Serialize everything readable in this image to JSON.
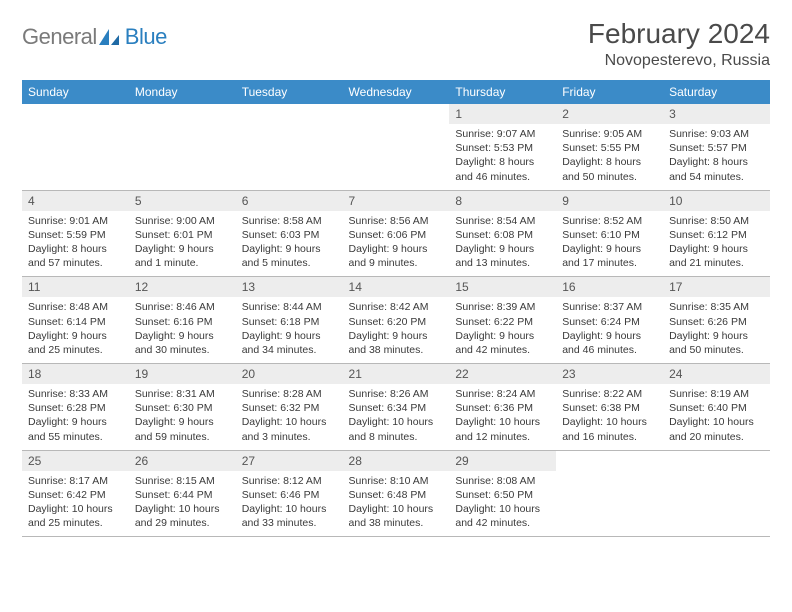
{
  "brand": {
    "word1": "General",
    "word2": "Blue"
  },
  "title": {
    "month": "February 2024",
    "location": "Novopesterevo, Russia"
  },
  "colors": {
    "header_bg": "#3b8bc8",
    "header_text": "#ffffff",
    "daynum_bg": "#ededed",
    "text": "#3a3a3a",
    "divider": "#b8b8b8",
    "logo_gray": "#7a7a7a",
    "logo_blue": "#2a7fbf",
    "page_bg": "#ffffff"
  },
  "typography": {
    "month_title_fontsize": 28,
    "location_fontsize": 16,
    "dayhead_fontsize": 12,
    "daynum_fontsize": 12,
    "body_fontsize": 10.5
  },
  "calendar": {
    "type": "table",
    "columns": [
      "Sunday",
      "Monday",
      "Tuesday",
      "Wednesday",
      "Thursday",
      "Friday",
      "Saturday"
    ],
    "weeks": [
      [
        {
          "blank": true
        },
        {
          "blank": true
        },
        {
          "blank": true
        },
        {
          "blank": true
        },
        {
          "day": "1",
          "sunrise": "Sunrise: 9:07 AM",
          "sunset": "Sunset: 5:53 PM",
          "daylight1": "Daylight: 8 hours",
          "daylight2": "and 46 minutes."
        },
        {
          "day": "2",
          "sunrise": "Sunrise: 9:05 AM",
          "sunset": "Sunset: 5:55 PM",
          "daylight1": "Daylight: 8 hours",
          "daylight2": "and 50 minutes."
        },
        {
          "day": "3",
          "sunrise": "Sunrise: 9:03 AM",
          "sunset": "Sunset: 5:57 PM",
          "daylight1": "Daylight: 8 hours",
          "daylight2": "and 54 minutes."
        }
      ],
      [
        {
          "day": "4",
          "sunrise": "Sunrise: 9:01 AM",
          "sunset": "Sunset: 5:59 PM",
          "daylight1": "Daylight: 8 hours",
          "daylight2": "and 57 minutes."
        },
        {
          "day": "5",
          "sunrise": "Sunrise: 9:00 AM",
          "sunset": "Sunset: 6:01 PM",
          "daylight1": "Daylight: 9 hours",
          "daylight2": "and 1 minute."
        },
        {
          "day": "6",
          "sunrise": "Sunrise: 8:58 AM",
          "sunset": "Sunset: 6:03 PM",
          "daylight1": "Daylight: 9 hours",
          "daylight2": "and 5 minutes."
        },
        {
          "day": "7",
          "sunrise": "Sunrise: 8:56 AM",
          "sunset": "Sunset: 6:06 PM",
          "daylight1": "Daylight: 9 hours",
          "daylight2": "and 9 minutes."
        },
        {
          "day": "8",
          "sunrise": "Sunrise: 8:54 AM",
          "sunset": "Sunset: 6:08 PM",
          "daylight1": "Daylight: 9 hours",
          "daylight2": "and 13 minutes."
        },
        {
          "day": "9",
          "sunrise": "Sunrise: 8:52 AM",
          "sunset": "Sunset: 6:10 PM",
          "daylight1": "Daylight: 9 hours",
          "daylight2": "and 17 minutes."
        },
        {
          "day": "10",
          "sunrise": "Sunrise: 8:50 AM",
          "sunset": "Sunset: 6:12 PM",
          "daylight1": "Daylight: 9 hours",
          "daylight2": "and 21 minutes."
        }
      ],
      [
        {
          "day": "11",
          "sunrise": "Sunrise: 8:48 AM",
          "sunset": "Sunset: 6:14 PM",
          "daylight1": "Daylight: 9 hours",
          "daylight2": "and 25 minutes."
        },
        {
          "day": "12",
          "sunrise": "Sunrise: 8:46 AM",
          "sunset": "Sunset: 6:16 PM",
          "daylight1": "Daylight: 9 hours",
          "daylight2": "and 30 minutes."
        },
        {
          "day": "13",
          "sunrise": "Sunrise: 8:44 AM",
          "sunset": "Sunset: 6:18 PM",
          "daylight1": "Daylight: 9 hours",
          "daylight2": "and 34 minutes."
        },
        {
          "day": "14",
          "sunrise": "Sunrise: 8:42 AM",
          "sunset": "Sunset: 6:20 PM",
          "daylight1": "Daylight: 9 hours",
          "daylight2": "and 38 minutes."
        },
        {
          "day": "15",
          "sunrise": "Sunrise: 8:39 AM",
          "sunset": "Sunset: 6:22 PM",
          "daylight1": "Daylight: 9 hours",
          "daylight2": "and 42 minutes."
        },
        {
          "day": "16",
          "sunrise": "Sunrise: 8:37 AM",
          "sunset": "Sunset: 6:24 PM",
          "daylight1": "Daylight: 9 hours",
          "daylight2": "and 46 minutes."
        },
        {
          "day": "17",
          "sunrise": "Sunrise: 8:35 AM",
          "sunset": "Sunset: 6:26 PM",
          "daylight1": "Daylight: 9 hours",
          "daylight2": "and 50 minutes."
        }
      ],
      [
        {
          "day": "18",
          "sunrise": "Sunrise: 8:33 AM",
          "sunset": "Sunset: 6:28 PM",
          "daylight1": "Daylight: 9 hours",
          "daylight2": "and 55 minutes."
        },
        {
          "day": "19",
          "sunrise": "Sunrise: 8:31 AM",
          "sunset": "Sunset: 6:30 PM",
          "daylight1": "Daylight: 9 hours",
          "daylight2": "and 59 minutes."
        },
        {
          "day": "20",
          "sunrise": "Sunrise: 8:28 AM",
          "sunset": "Sunset: 6:32 PM",
          "daylight1": "Daylight: 10 hours",
          "daylight2": "and 3 minutes."
        },
        {
          "day": "21",
          "sunrise": "Sunrise: 8:26 AM",
          "sunset": "Sunset: 6:34 PM",
          "daylight1": "Daylight: 10 hours",
          "daylight2": "and 8 minutes."
        },
        {
          "day": "22",
          "sunrise": "Sunrise: 8:24 AM",
          "sunset": "Sunset: 6:36 PM",
          "daylight1": "Daylight: 10 hours",
          "daylight2": "and 12 minutes."
        },
        {
          "day": "23",
          "sunrise": "Sunrise: 8:22 AM",
          "sunset": "Sunset: 6:38 PM",
          "daylight1": "Daylight: 10 hours",
          "daylight2": "and 16 minutes."
        },
        {
          "day": "24",
          "sunrise": "Sunrise: 8:19 AM",
          "sunset": "Sunset: 6:40 PM",
          "daylight1": "Daylight: 10 hours",
          "daylight2": "and 20 minutes."
        }
      ],
      [
        {
          "day": "25",
          "sunrise": "Sunrise: 8:17 AM",
          "sunset": "Sunset: 6:42 PM",
          "daylight1": "Daylight: 10 hours",
          "daylight2": "and 25 minutes."
        },
        {
          "day": "26",
          "sunrise": "Sunrise: 8:15 AM",
          "sunset": "Sunset: 6:44 PM",
          "daylight1": "Daylight: 10 hours",
          "daylight2": "and 29 minutes."
        },
        {
          "day": "27",
          "sunrise": "Sunrise: 8:12 AM",
          "sunset": "Sunset: 6:46 PM",
          "daylight1": "Daylight: 10 hours",
          "daylight2": "and 33 minutes."
        },
        {
          "day": "28",
          "sunrise": "Sunrise: 8:10 AM",
          "sunset": "Sunset: 6:48 PM",
          "daylight1": "Daylight: 10 hours",
          "daylight2": "and 38 minutes."
        },
        {
          "day": "29",
          "sunrise": "Sunrise: 8:08 AM",
          "sunset": "Sunset: 6:50 PM",
          "daylight1": "Daylight: 10 hours",
          "daylight2": "and 42 minutes."
        },
        {
          "blank": true
        },
        {
          "blank": true
        }
      ]
    ]
  }
}
